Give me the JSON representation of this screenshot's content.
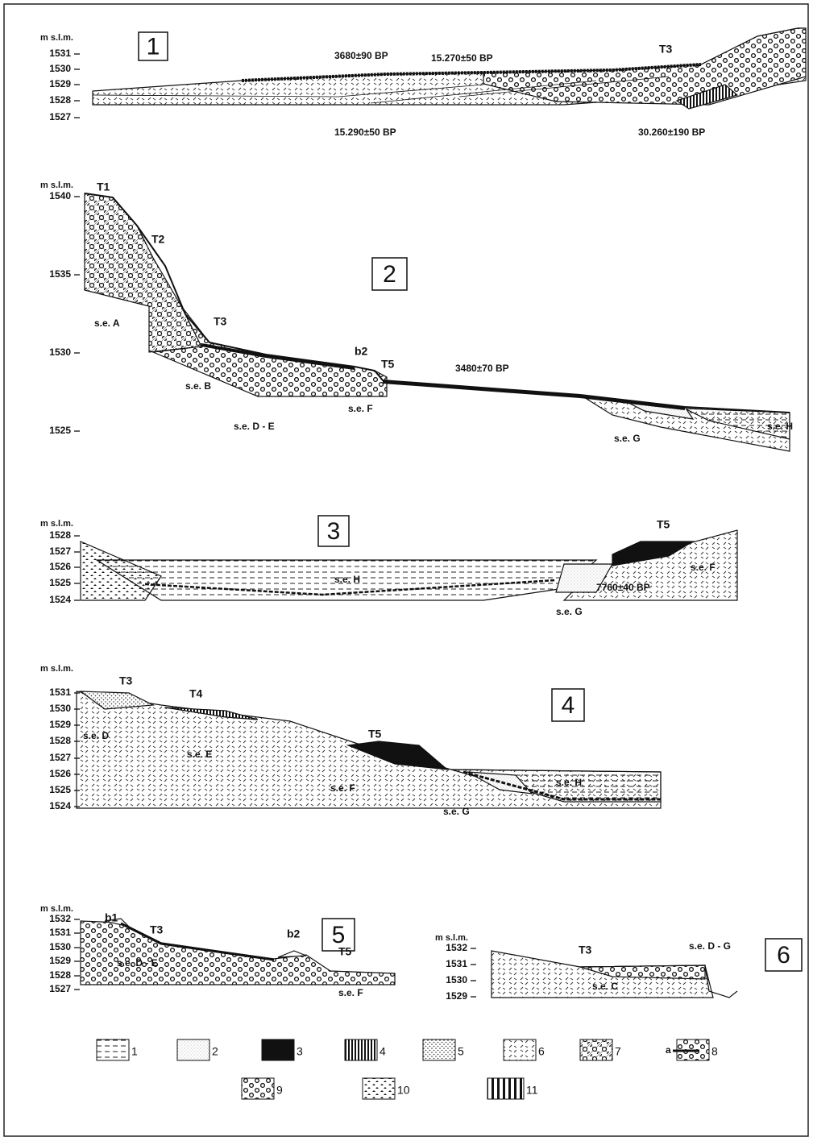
{
  "panels": [
    {
      "number": "1",
      "unit": "m s.l.m.",
      "ticks": [
        "1531",
        "1530",
        "1529",
        "1528",
        "1527"
      ],
      "labels": [
        "3680±90  BP",
        "15.270±50  BP",
        "T3",
        "15.290±50  BP",
        "30.260±190  BP"
      ]
    },
    {
      "number": "2",
      "unit": "m s.l.m.",
      "ticks": [
        "1540",
        "1535",
        "1530",
        "1525"
      ],
      "labels": [
        "T1",
        "T2",
        "T3",
        "b2",
        "T5",
        "3480±70  BP",
        "s.e.  A",
        "s.e.  B",
        "s.e.  D - E",
        "s.e.  F",
        "s.e.  G",
        "s.e.  H"
      ]
    },
    {
      "number": "3",
      "unit": "m s.l.m.",
      "ticks": [
        "1528",
        "1527",
        "1526",
        "1525",
        "1524"
      ],
      "labels": [
        "T5",
        "s.e.  H",
        "s.e.  F",
        "7760±40  BP",
        "s.e.  G"
      ]
    },
    {
      "number": "4",
      "unit": "m s.l.m.",
      "ticks": [
        "1531",
        "1530",
        "1529",
        "1528",
        "1527",
        "1526",
        "1525",
        "1524"
      ],
      "labels": [
        "T3",
        "T4",
        "T5",
        "s.e.  D",
        "s.e.  E",
        "s.e.  F",
        "s.e.  G",
        "s.e.  H"
      ]
    },
    {
      "number": "5",
      "unit": "m s.l.m.",
      "ticks": [
        "1532",
        "1531",
        "1530",
        "1529",
        "1528",
        "1527"
      ],
      "labels": [
        "b1",
        "T3",
        "b2",
        "T5",
        "s.e.  D - E",
        "s.e.  F"
      ]
    },
    {
      "number": "6",
      "unit": "m s.l.m.",
      "ticks": [
        "1532",
        "1531",
        "1530",
        "1529"
      ],
      "labels": [
        "T3",
        "s.e.  D - G",
        "s.e.  C"
      ]
    }
  ],
  "legend": [
    {
      "label": "1"
    },
    {
      "label": "2"
    },
    {
      "label": "3"
    },
    {
      "label": "4"
    },
    {
      "label": "5"
    },
    {
      "label": "6"
    },
    {
      "label": "7"
    },
    {
      "prefix": "a",
      "label": "8"
    },
    {
      "label": "9"
    },
    {
      "label": "10"
    },
    {
      "label": "11"
    }
  ]
}
